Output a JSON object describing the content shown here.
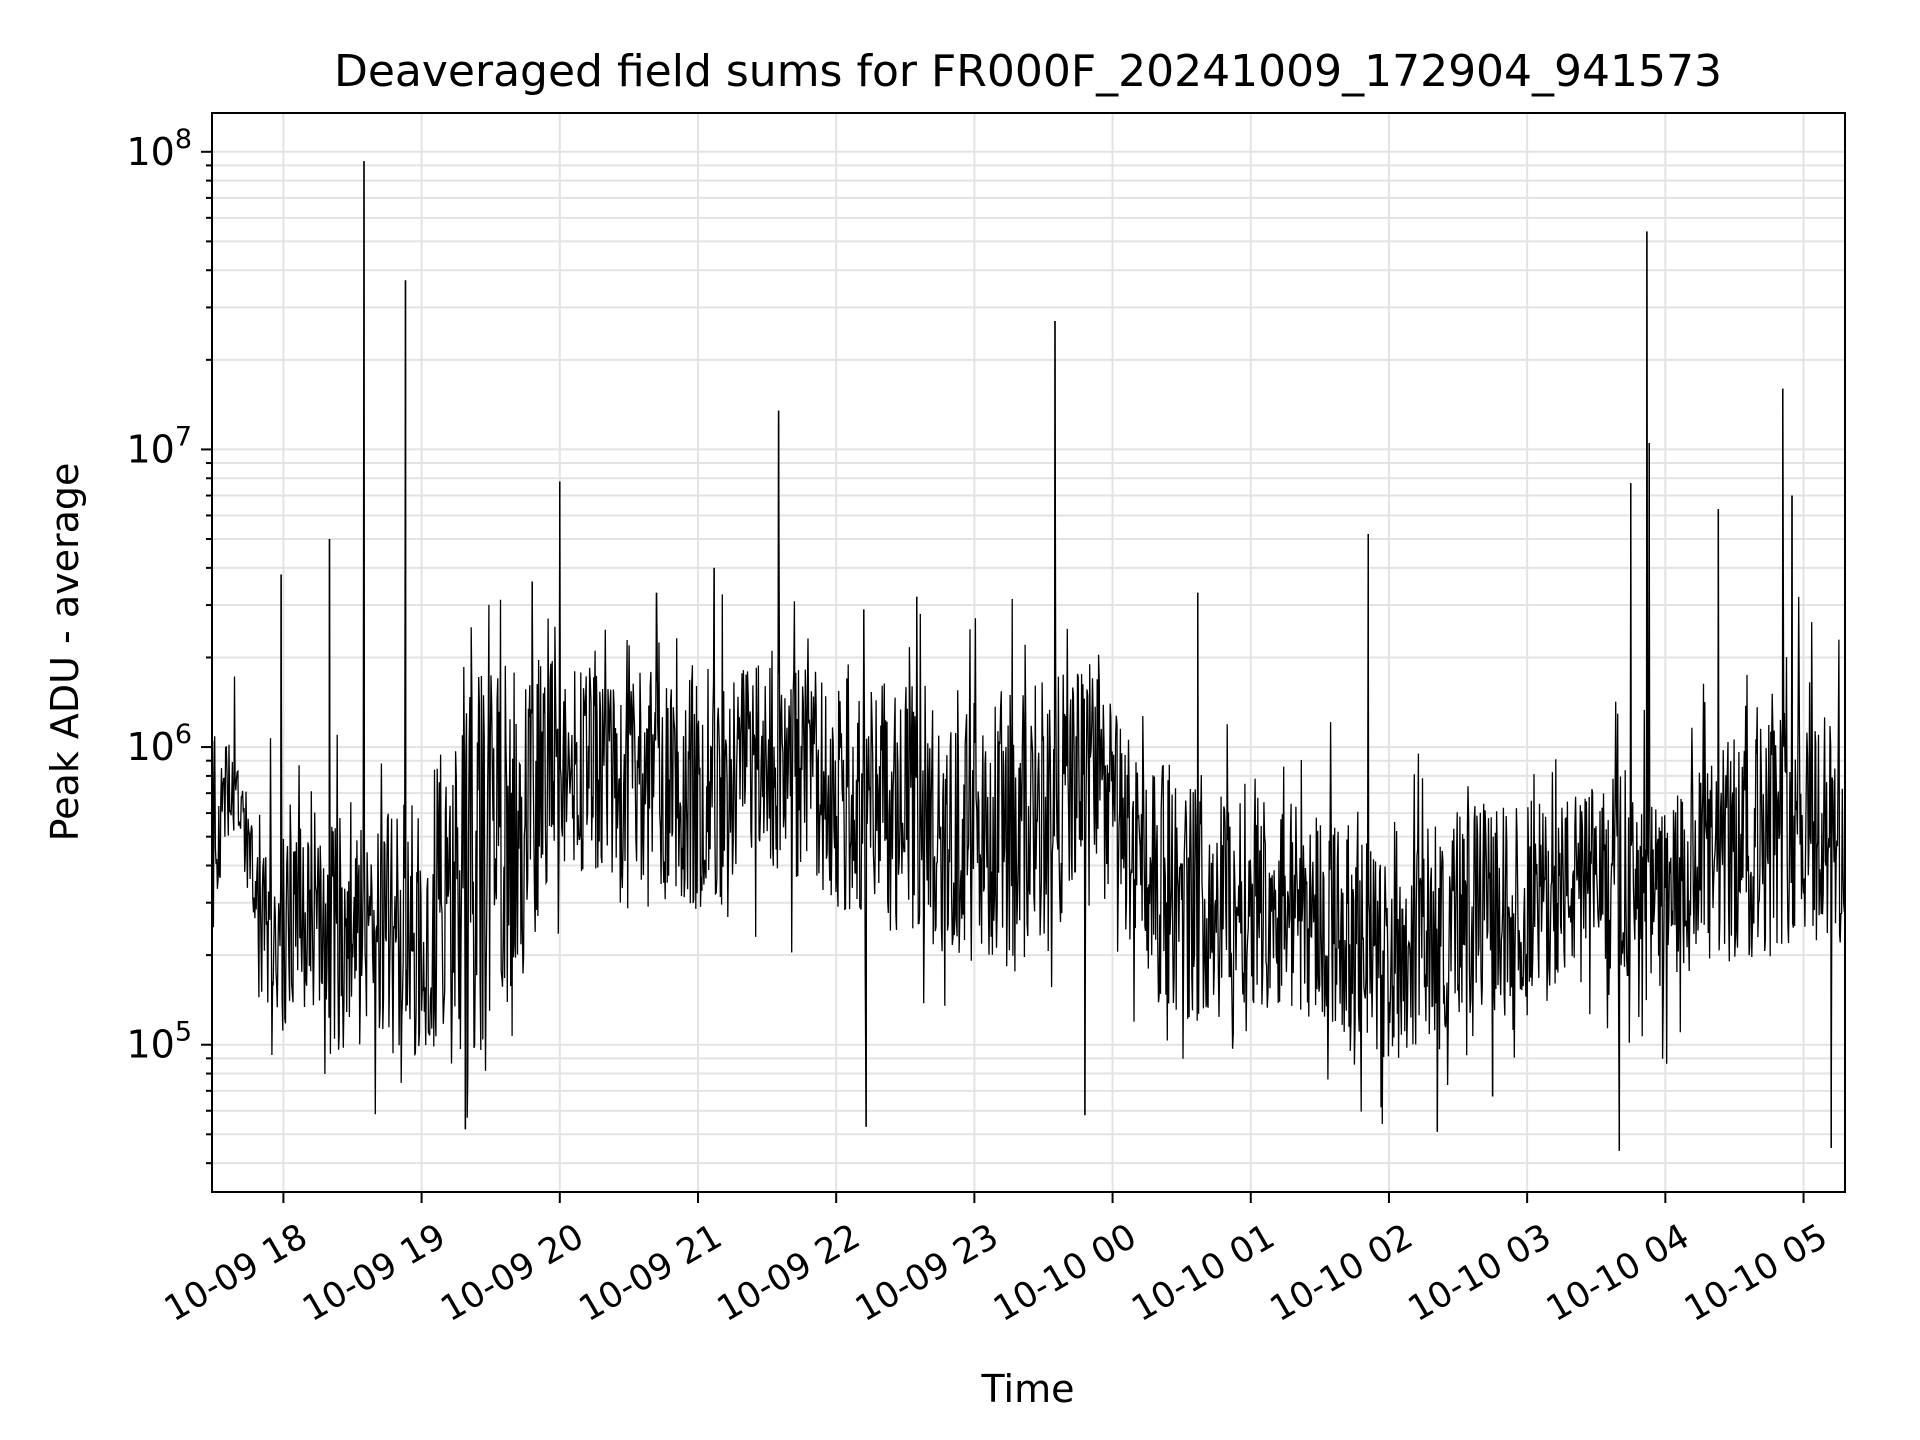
{
  "chart_data": {
    "type": "line",
    "title": "Deaveraged field sums for FR000F_20241009_172904_941573",
    "xlabel": "Time",
    "ylabel": "Peak ADU - average",
    "y_scale": "log",
    "ylim": [
      32000,
      135000000
    ],
    "xlim": [
      "2024-10-09 17:29",
      "2024-10-10 05:18"
    ],
    "grid": true,
    "x_ticks": [
      {
        "t": "2024-10-09 18:00",
        "label": "10-09 18"
      },
      {
        "t": "2024-10-09 19:00",
        "label": "10-09 19"
      },
      {
        "t": "2024-10-09 20:00",
        "label": "10-09 20"
      },
      {
        "t": "2024-10-09 21:00",
        "label": "10-09 21"
      },
      {
        "t": "2024-10-09 22:00",
        "label": "10-09 22"
      },
      {
        "t": "2024-10-09 23:00",
        "label": "10-09 23"
      },
      {
        "t": "2024-10-10 00:00",
        "label": "10-10 00"
      },
      {
        "t": "2024-10-10 01:00",
        "label": "10-10 01"
      },
      {
        "t": "2024-10-10 02:00",
        "label": "10-10 02"
      },
      {
        "t": "2024-10-10 03:00",
        "label": "10-10 03"
      },
      {
        "t": "2024-10-10 04:00",
        "label": "10-10 04"
      },
      {
        "t": "2024-10-10 05:00",
        "label": "10-10 05"
      }
    ],
    "y_ticks": [
      {
        "value": 100000,
        "base": "10",
        "exp": "5"
      },
      {
        "value": 1000000,
        "base": "10",
        "exp": "6"
      },
      {
        "value": 10000000,
        "base": "10",
        "exp": "7"
      },
      {
        "value": 100000000,
        "base": "10",
        "exp": "8"
      }
    ],
    "series": [
      {
        "color": "#000000",
        "baseline_profile": [
          {
            "t": "2024-10-09 17:29",
            "low": 200000,
            "high": 1200000
          },
          {
            "t": "2024-10-09 17:38",
            "low": 500000,
            "high": 1000000
          },
          {
            "t": "2024-10-09 17:48",
            "low": 250000,
            "high": 600000
          },
          {
            "t": "2024-10-09 18:00",
            "low": 110000,
            "high": 500000
          },
          {
            "t": "2024-10-09 18:30",
            "low": 100000,
            "high": 500000
          },
          {
            "t": "2024-10-09 19:00",
            "low": 100000,
            "high": 600000
          },
          {
            "t": "2024-10-09 19:20",
            "low": 90000,
            "high": 1500000
          },
          {
            "t": "2024-10-09 19:45",
            "low": 200000,
            "high": 1800000
          },
          {
            "t": "2024-10-09 20:00",
            "low": 400000,
            "high": 1800000
          },
          {
            "t": "2024-10-09 20:30",
            "low": 400000,
            "high": 1700000
          },
          {
            "t": "2024-10-09 21:00",
            "low": 300000,
            "high": 1600000
          },
          {
            "t": "2024-10-09 21:30",
            "low": 400000,
            "high": 1800000
          },
          {
            "t": "2024-10-09 22:00",
            "low": 300000,
            "high": 1600000
          },
          {
            "t": "2024-10-09 22:30",
            "low": 250000,
            "high": 1500000
          },
          {
            "t": "2024-10-09 23:00",
            "low": 200000,
            "high": 1400000
          },
          {
            "t": "2024-10-09 23:30",
            "low": 200000,
            "high": 1500000
          },
          {
            "t": "2024-10-09 23:50",
            "low": 500000,
            "high": 1800000
          },
          {
            "t": "2024-10-10 00:10",
            "low": 200000,
            "high": 1000000
          },
          {
            "t": "2024-10-10 00:30",
            "low": 130000,
            "high": 700000
          },
          {
            "t": "2024-10-10 01:00",
            "low": 150000,
            "high": 700000
          },
          {
            "t": "2024-10-10 01:30",
            "low": 130000,
            "high": 600000
          },
          {
            "t": "2024-10-10 02:00",
            "low": 90000,
            "high": 400000
          },
          {
            "t": "2024-10-10 02:30",
            "low": 130000,
            "high": 600000
          },
          {
            "t": "2024-10-10 03:00",
            "low": 150000,
            "high": 600000
          },
          {
            "t": "2024-10-10 03:30",
            "low": 200000,
            "high": 700000
          },
          {
            "t": "2024-10-10 04:00",
            "low": 150000,
            "high": 600000
          },
          {
            "t": "2024-10-10 04:30",
            "low": 200000,
            "high": 1000000
          },
          {
            "t": "2024-10-10 05:00",
            "low": 250000,
            "high": 1500000
          },
          {
            "t": "2024-10-10 05:18",
            "low": 200000,
            "high": 1000000
          }
        ],
        "spikes": [
          {
            "t": "2024-10-09 17:59",
            "value": 3800000
          },
          {
            "t": "2024-10-09 18:20",
            "value": 5000000
          },
          {
            "t": "2024-10-09 18:35",
            "value": 93000000
          },
          {
            "t": "2024-10-09 18:53",
            "value": 37000000
          },
          {
            "t": "2024-10-09 19:19",
            "value": 52000
          },
          {
            "t": "2024-10-09 19:48",
            "value": 3600000
          },
          {
            "t": "2024-10-09 20:00",
            "value": 7800000
          },
          {
            "t": "2024-10-09 20:42",
            "value": 3300000
          },
          {
            "t": "2024-10-09 21:07",
            "value": 4000000
          },
          {
            "t": "2024-10-09 21:35",
            "value": 13500000
          },
          {
            "t": "2024-10-09 22:12",
            "value": 2900000
          },
          {
            "t": "2024-10-09 22:13",
            "value": 53000
          },
          {
            "t": "2024-10-09 22:35",
            "value": 3200000
          },
          {
            "t": "2024-10-09 23:35",
            "value": 27000000
          },
          {
            "t": "2024-10-09 23:48",
            "value": 58000
          },
          {
            "t": "2024-10-10 00:37",
            "value": 3300000
          },
          {
            "t": "2024-10-10 01:51",
            "value": 5200000
          },
          {
            "t": "2024-10-10 02:21",
            "value": 51000
          },
          {
            "t": "2024-10-10 02:45",
            "value": 67000
          },
          {
            "t": "2024-10-10 03:40",
            "value": 44000
          },
          {
            "t": "2024-10-10 03:45",
            "value": 7700000
          },
          {
            "t": "2024-10-10 03:52",
            "value": 54000000
          },
          {
            "t": "2024-10-10 03:53",
            "value": 10500000
          },
          {
            "t": "2024-10-10 04:23",
            "value": 6300000
          },
          {
            "t": "2024-10-10 04:51",
            "value": 16000000
          },
          {
            "t": "2024-10-10 04:55",
            "value": 7000000
          },
          {
            "t": "2024-10-10 05:12",
            "value": 45000
          }
        ]
      }
    ]
  }
}
